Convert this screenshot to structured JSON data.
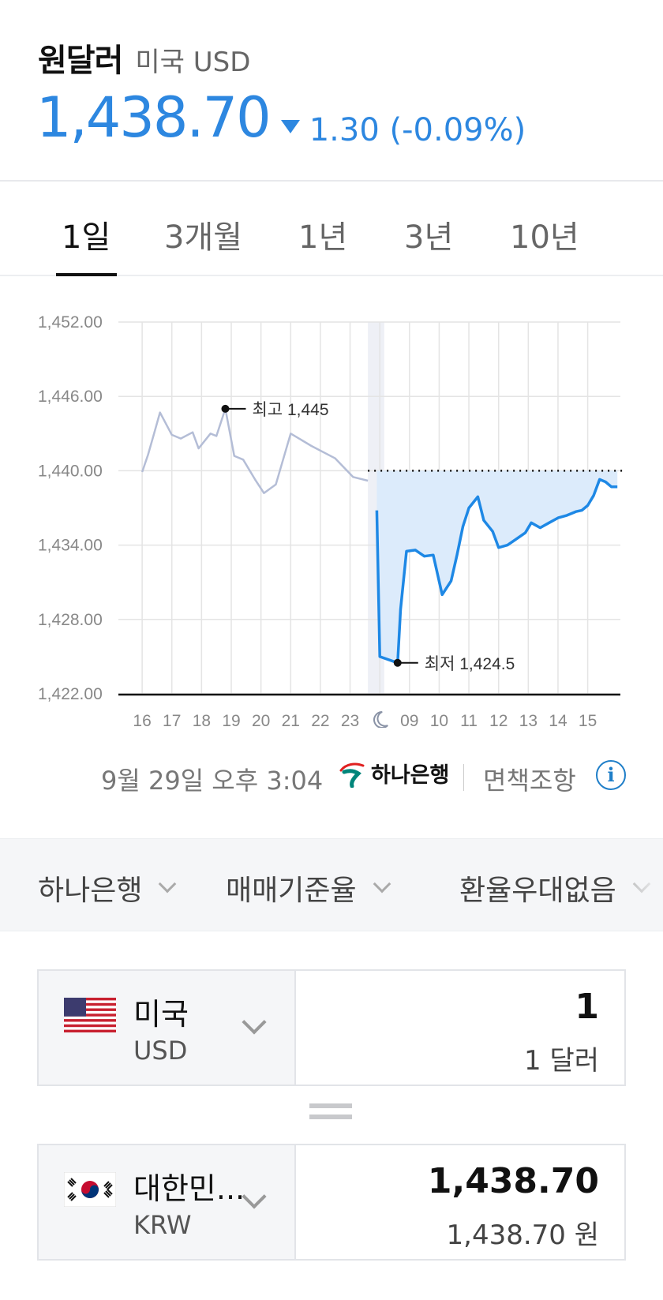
{
  "header": {
    "title": "원달러",
    "subtitle": "미국 USD",
    "price": "1,438.70",
    "change": "1.30 (-0.09%)",
    "change_color": "#2d87e0"
  },
  "tabs": [
    {
      "label": "1일",
      "active": true
    },
    {
      "label": "3개월",
      "active": false
    },
    {
      "label": "1년",
      "active": false
    },
    {
      "label": "3년",
      "active": false
    },
    {
      "label": "10년",
      "active": false
    }
  ],
  "chart_data": {
    "type": "line",
    "ylim": [
      1422,
      1452
    ],
    "yticks": [
      "1,452.00",
      "1,446.00",
      "1,440.00",
      "1,434.00",
      "1,428.00",
      "1,422.00"
    ],
    "xticks": [
      "16",
      "17",
      "18",
      "19",
      "20",
      "21",
      "22",
      "23",
      "moon-icon",
      "09",
      "10",
      "11",
      "12",
      "13",
      "14",
      "15"
    ],
    "reference_value": 1440.0,
    "high_label": "최고 1,445",
    "low_label": "최저 1,424.5",
    "series": [
      {
        "segment": "previous-session",
        "color": "#b4bdd6",
        "x": [
          16.0,
          16.2,
          16.4,
          16.6,
          17.0,
          17.3,
          17.7,
          17.9,
          18.3,
          18.5,
          18.8,
          19.1,
          19.4,
          19.8,
          20.1,
          20.5,
          21.0,
          21.7,
          22.5,
          23.1,
          23.6
        ],
        "y": [
          1439.9,
          1441.3,
          1443.0,
          1444.7,
          1442.9,
          1442.6,
          1443.1,
          1441.8,
          1443.0,
          1442.8,
          1445.0,
          1441.2,
          1440.9,
          1439.3,
          1438.2,
          1438.9,
          1443.0,
          1442.0,
          1441.0,
          1439.5,
          1439.2
        ]
      },
      {
        "segment": "current-session",
        "color": "#1e88e5",
        "x": [
          23.9,
          24.0,
          24.6,
          24.7,
          24.9,
          25.2,
          25.5,
          25.8,
          26.1,
          26.4,
          26.6,
          26.8,
          27.0,
          27.3,
          27.5,
          27.8,
          28.0,
          28.3,
          28.6,
          28.9,
          29.1,
          29.4,
          29.7,
          30.0,
          30.3,
          30.6,
          30.8,
          31.0,
          31.2,
          31.4,
          31.6,
          31.8,
          32.0
        ],
        "y": [
          1436.8,
          1425.0,
          1424.5,
          1428.8,
          1433.5,
          1433.6,
          1433.1,
          1433.2,
          1430.0,
          1431.1,
          1433.2,
          1435.5,
          1437.0,
          1437.9,
          1436.0,
          1435.1,
          1433.8,
          1434.0,
          1434.5,
          1435.0,
          1435.8,
          1435.4,
          1435.8,
          1436.2,
          1436.4,
          1436.7,
          1436.8,
          1437.2,
          1438.0,
          1439.3,
          1439.1,
          1438.7,
          1438.7
        ]
      }
    ]
  },
  "meta": {
    "timestamp": "9월 29일 오후 3:04",
    "bank": "하나은행",
    "disclaimer": "면책조항",
    "info_icon": "i",
    "bank_color": "#00857a"
  },
  "filters": [
    {
      "label": "하나은행"
    },
    {
      "label": "매매기준율"
    },
    {
      "label": "환율우대없음"
    }
  ],
  "from": {
    "name": "미국",
    "code": "USD",
    "amount": "1",
    "amount_text": "1 달러",
    "flag": "us-flag-icon"
  },
  "to": {
    "name": "대한민...",
    "code": "KRW",
    "amount": "1,438.70",
    "amount_text": "1,438.70 원",
    "flag": "kr-flag-icon"
  }
}
